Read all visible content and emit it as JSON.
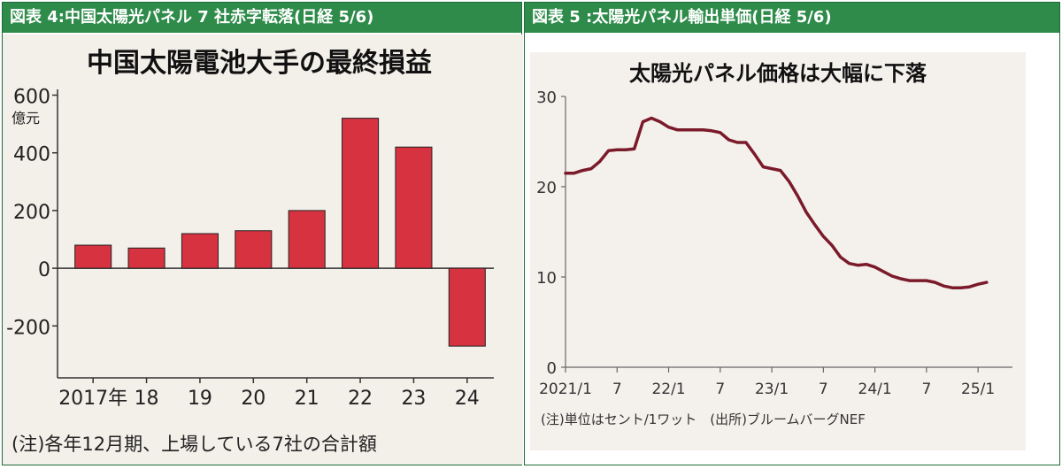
{
  "figure4": {
    "header": "図表 4:中国太陽光パネル 7 社赤字転落(日経 5/6)",
    "chart_data": {
      "type": "bar",
      "title": "中国太陽電池大手の最終損益",
      "ylabel": "億元",
      "categories": [
        "2017年",
        "18",
        "19",
        "20",
        "21",
        "22",
        "23",
        "24"
      ],
      "values": [
        80,
        70,
        120,
        130,
        200,
        520,
        420,
        -270
      ],
      "ylim": [
        -380,
        620
      ],
      "yticks": [
        "600",
        "400",
        "200",
        "0",
        "-200"
      ],
      "ytick_values": [
        600,
        400,
        200,
        0,
        -200
      ],
      "bar_color": "#d6323f",
      "note": "(注)各年12月期、上場している7社の合計額"
    }
  },
  "figure5": {
    "header": "図表 5 :太陽光パネル輸出単価(日経 5/6)",
    "chart_data": {
      "type": "line",
      "title": "太陽光パネル価格は大幅に下落",
      "x_start": "2021-01",
      "x_ticks": [
        "2021/1",
        "7",
        "22/1",
        "7",
        "23/1",
        "7",
        "24/1",
        "7",
        "25/1"
      ],
      "x_tick_months": [
        0,
        6,
        12,
        18,
        24,
        30,
        36,
        42,
        48
      ],
      "yticks": [
        "30",
        "20",
        "10",
        "0"
      ],
      "ytick_values": [
        30,
        20,
        10,
        0
      ],
      "ylim": [
        0,
        30
      ],
      "xlim_months": [
        0,
        52
      ],
      "line_color": "#7a1a2a",
      "series": [
        {
          "x": [
            "2021-01",
            "2021-02",
            "2021-03",
            "2021-04",
            "2021-05",
            "2021-06",
            "2021-07",
            "2021-08",
            "2021-09",
            "2021-10",
            "2021-11",
            "2021-12",
            "2022-01",
            "2022-02",
            "2022-03",
            "2022-04",
            "2022-05",
            "2022-06",
            "2022-07",
            "2022-08",
            "2022-09",
            "2022-10",
            "2022-11",
            "2022-12",
            "2023-01",
            "2023-02",
            "2023-03",
            "2023-04",
            "2023-05",
            "2023-06",
            "2023-07",
            "2023-08",
            "2023-09",
            "2023-10",
            "2023-11",
            "2023-12",
            "2024-01",
            "2024-02",
            "2024-03",
            "2024-04",
            "2024-05",
            "2024-06",
            "2024-07",
            "2024-08",
            "2024-09",
            "2024-10",
            "2024-11",
            "2024-12",
            "2025-01",
            "2025-02"
          ],
          "values": [
            21.5,
            21.5,
            21.8,
            22.0,
            22.8,
            24.0,
            24.1,
            24.1,
            24.2,
            27.2,
            27.6,
            27.2,
            26.6,
            26.3,
            26.3,
            26.3,
            26.3,
            26.2,
            26.0,
            25.2,
            24.9,
            24.9,
            23.6,
            22.2,
            22.0,
            21.8,
            20.6,
            19.0,
            17.2,
            15.8,
            14.5,
            13.5,
            12.2,
            11.5,
            11.3,
            11.4,
            11.1,
            10.6,
            10.1,
            9.8,
            9.6,
            9.6,
            9.6,
            9.4,
            9.0,
            8.8,
            8.8,
            8.9,
            9.2,
            9.4
          ]
        }
      ],
      "note": "(注)単位はセント/1ワット　(出所)ブルームバーグNEF"
    }
  }
}
